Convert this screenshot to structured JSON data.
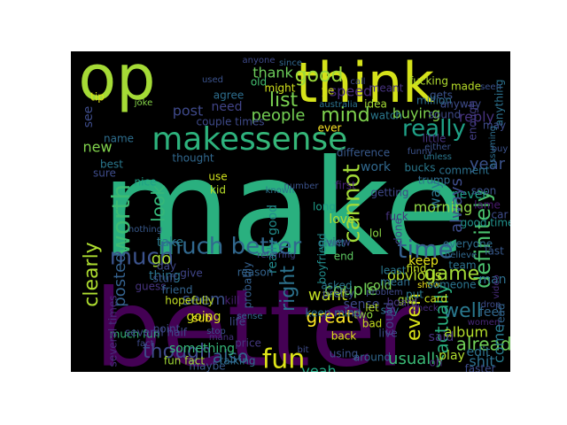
{
  "background": "#000000",
  "page_background": "#ffffff",
  "words": [
    {
      "text": "make",
      "color": "#2ab07f"
    },
    {
      "text": "better",
      "color": "#440154"
    },
    {
      "text": "op",
      "color": "#a5db36"
    },
    {
      "text": "think",
      "color": "#d5e21a"
    },
    {
      "text": "makes",
      "color": "#2db27d"
    },
    {
      "text": "sense",
      "color": "#35b779"
    },
    {
      "text": "good",
      "color": "#9bd93c"
    },
    {
      "text": "thank",
      "color": "#6ccd5a"
    },
    {
      "text": "list",
      "color": "#7ad151"
    },
    {
      "text": "speed",
      "color": "#472c7a"
    },
    {
      "text": "mind",
      "color": "#7fd34e"
    },
    {
      "text": "people",
      "color": "#75d054"
    },
    {
      "text": "really",
      "color": "#1fa187"
    },
    {
      "text": "worth",
      "color": "#3dbc74"
    },
    {
      "text": "look",
      "color": "#35b779"
    },
    {
      "text": "cannot",
      "color": "#a2da37"
    },
    {
      "text": "definitely",
      "color": "#4ac16d"
    },
    {
      "text": "much",
      "color": "#3b528b"
    },
    {
      "text": "much better",
      "color": "#31688e"
    },
    {
      "text": "time",
      "color": "#355f8d"
    },
    {
      "text": "game",
      "color": "#a2da37"
    },
    {
      "text": "well",
      "color": "#2a788e"
    },
    {
      "text": "fun",
      "color": "#dde318"
    },
    {
      "text": "already",
      "color": "#70cf57"
    },
    {
      "text": "usually",
      "color": "#3aba76"
    },
    {
      "text": "though",
      "color": "#3e4a89"
    },
    {
      "text": "also",
      "color": "#33638d"
    },
    {
      "text": "great",
      "color": "#fde725"
    },
    {
      "text": "right",
      "color": "#2c728e"
    },
    {
      "text": "couple",
      "color": "#6ece58"
    },
    {
      "text": "even",
      "color": "#d8e219"
    },
    {
      "text": "actually",
      "color": "#29af7f"
    },
    {
      "text": "album",
      "color": "#b5de2b"
    },
    {
      "text": "yeah",
      "color": "#22a884"
    },
    {
      "text": "edit",
      "color": "#2c728e"
    },
    {
      "text": "clearly",
      "color": "#addc30"
    },
    {
      "text": "posted",
      "color": "#34618d"
    },
    {
      "text": "seem",
      "color": "#3b528b"
    },
    {
      "text": "want",
      "color": "#c2df23"
    },
    {
      "text": "new",
      "color": "#81d34d"
    },
    {
      "text": "post",
      "color": "#3e4989"
    },
    {
      "text": "need",
      "color": "#414487"
    },
    {
      "text": "see",
      "color": "#3e4c8a"
    },
    {
      "text": "year",
      "color": "#3b528b"
    },
    {
      "text": "reply",
      "color": "#46327e"
    },
    {
      "text": "buying",
      "color": "#7fd34e"
    },
    {
      "text": "never",
      "color": "#1fa088"
    },
    {
      "text": "work",
      "color": "#31688e"
    },
    {
      "text": "always",
      "color": "#3e4c8a"
    },
    {
      "text": "way",
      "color": "#2a768e"
    },
    {
      "text": "morning",
      "color": "#8fd744"
    },
    {
      "text": "obvious",
      "color": "#bade28"
    },
    {
      "text": "keep",
      "color": "#e7e419"
    },
    {
      "text": "sense",
      "color": "#3e4989"
    },
    {
      "text": "go",
      "color": "#a8db34"
    },
    {
      "text": "take",
      "color": "#2a788e"
    },
    {
      "text": "come",
      "color": "#287c8e"
    },
    {
      "text": "shit",
      "color": "#2d708e"
    },
    {
      "text": "said",
      "color": "#46327e"
    },
    {
      "text": "feel",
      "color": "#31688e"
    },
    {
      "text": "play",
      "color": "#b0dd2f"
    },
    {
      "text": "man",
      "color": "#2e6f8e"
    },
    {
      "text": "going",
      "color": "#d2e21b"
    },
    {
      "text": "something",
      "color": "#35b779"
    },
    {
      "text": "love",
      "color": "#b0dd2f"
    },
    {
      "text": "first",
      "color": "#482475"
    },
    {
      "text": "could",
      "color": "#404588"
    },
    {
      "text": "lol",
      "color": "#8bd646"
    },
    {
      "text": "say",
      "color": "#2f6c8e"
    },
    {
      "text": "put",
      "color": "#2a788e"
    },
    {
      "text": "cold",
      "color": "#7ad151"
    },
    {
      "text": "bad",
      "color": "#c8e020"
    },
    {
      "text": "back",
      "color": "#e2e418"
    },
    {
      "text": "live",
      "color": "#3e4a89"
    },
    {
      "text": "asked",
      "color": "#2a788e"
    },
    {
      "text": "use",
      "color": "#d0e11c"
    },
    {
      "text": "kid",
      "color": "#b8de29"
    },
    {
      "text": "nice",
      "color": "#1fa188"
    },
    {
      "text": "thing",
      "color": "#2b748e"
    },
    {
      "text": "guess",
      "color": "#46337e"
    },
    {
      "text": "probably",
      "color": "#34608d"
    },
    {
      "text": "really good",
      "color": "#228c8d"
    },
    {
      "text": "view",
      "color": "#3e4c8a"
    },
    {
      "text": "end",
      "color": "#5ec962"
    },
    {
      "text": "two",
      "color": "#90d743"
    },
    {
      "text": "let",
      "color": "#b5de2b"
    },
    {
      "text": "guy",
      "color": "#a5db36"
    },
    {
      "text": "find",
      "color": "#c5e021"
    },
    {
      "text": "show",
      "color": "#f1e51d"
    },
    {
      "text": "card",
      "color": "#cde11d"
    },
    {
      "text": "read",
      "color": "#32648e"
    },
    {
      "text": "made",
      "color": "#b8de29"
    },
    {
      "text": "sound",
      "color": "#3e4a89"
    },
    {
      "text": "ever",
      "color": "#fde725"
    },
    {
      "text": "stuff",
      "color": "#3a538b"
    },
    {
      "text": "hopefully",
      "color": "#c2df23"
    },
    {
      "text": "day",
      "color": "#3f4788"
    },
    {
      "text": "give",
      "color": "#404588"
    },
    {
      "text": "friend",
      "color": "#33638d"
    },
    {
      "text": "point",
      "color": "#3e4989"
    },
    {
      "text": "sub",
      "color": "#fde725"
    },
    {
      "text": "maybe",
      "color": "#38598c"
    },
    {
      "text": "fun fact",
      "color": "#a2da37"
    },
    {
      "text": "much fun",
      "color": "#35b779"
    },
    {
      "text": "several times",
      "color": "#472f7d"
    },
    {
      "text": "several half",
      "color": "#3f4788"
    },
    {
      "text": "thought",
      "color": "#31688e"
    },
    {
      "text": "tip",
      "color": "#dde318"
    },
    {
      "text": "joke",
      "color": "#86d549"
    },
    {
      "text": "agree",
      "color": "#2e6e8e"
    },
    {
      "text": "old",
      "color": "#44bf70"
    },
    {
      "text": "might",
      "color": "#d2e21b"
    },
    {
      "text": "idea",
      "color": "#a5db36"
    },
    {
      "text": "watch",
      "color": "#2a788e"
    },
    {
      "text": "meant",
      "color": "#46327e"
    },
    {
      "text": "fucking",
      "color": "#b0dd2f"
    },
    {
      "text": "gets",
      "color": "#3b528b"
    },
    {
      "text": "anyway",
      "color": "#3e4c8a"
    },
    {
      "text": "anything",
      "color": "#2c728e"
    },
    {
      "text": "enough",
      "color": "#433e85"
    },
    {
      "text": "little",
      "color": "#46337e"
    },
    {
      "text": "difference",
      "color": "#38598c"
    },
    {
      "text": "bucks",
      "color": "#2a788e"
    },
    {
      "text": "trump",
      "color": "#2f6c8e"
    },
    {
      "text": "comment",
      "color": "#2c718e"
    },
    {
      "text": "soon",
      "color": "#3b528b"
    },
    {
      "text": "lame",
      "color": "#481a6c"
    },
    {
      "text": "everyone",
      "color": "#2e6e8e"
    },
    {
      "text": "good time",
      "color": "#21918c"
    },
    {
      "text": "car",
      "color": "#3e4c8a"
    },
    {
      "text": "someone",
      "color": "#2b748e"
    },
    {
      "text": "least",
      "color": "#2a788e"
    },
    {
      "text": "long",
      "color": "#1f9e89"
    },
    {
      "text": "giant",
      "color": "#2a788e"
    },
    {
      "text": "boyfriend",
      "color": "#228d8d"
    },
    {
      "text": "getting",
      "color": "#3e4989"
    },
    {
      "text": "pretty",
      "color": "#3b528b"
    },
    {
      "text": "keep mind",
      "color": "#2c728e"
    },
    {
      "text": "board",
      "color": "#46337e"
    },
    {
      "text": "talking",
      "color": "#2e6e8e"
    },
    {
      "text": "around",
      "color": "#31688e"
    },
    {
      "text": "faster",
      "color": "#3e4c8a"
    },
    {
      "text": "oh",
      "color": "#482576"
    },
    {
      "text": "using",
      "color": "#3b528b"
    },
    {
      "text": "price",
      "color": "#44387f"
    },
    {
      "text": "life",
      "color": "#3e4989"
    },
    {
      "text": "kill",
      "color": "#481f71"
    },
    {
      "text": "reason",
      "color": "#33638d"
    },
    {
      "text": "mean",
      "color": "#2e6e8e"
    },
    {
      "text": "team",
      "color": "#2c728e"
    },
    {
      "text": "last",
      "color": "#38598c"
    },
    {
      "text": "drop",
      "color": "#3e4c8a"
    },
    {
      "text": "video",
      "color": "#472c7a"
    },
    {
      "text": "fuck",
      "color": "#46327e"
    },
    {
      "text": "done",
      "color": "#404588"
    },
    {
      "text": "either",
      "color": "#3b528b"
    },
    {
      "text": "unless",
      "color": "#2a788e"
    },
    {
      "text": "may",
      "color": "#3e4c8a"
    },
    {
      "text": "buy",
      "color": "#3b528b"
    },
    {
      "text": "assuming",
      "color": "#2e6e8e"
    },
    {
      "text": "since",
      "color": "#31688e"
    },
    {
      "text": "anyone",
      "color": "#3e4989"
    },
    {
      "text": "used",
      "color": "#3b528b"
    },
    {
      "text": "australia",
      "color": "#2c728e"
    },
    {
      "text": "call",
      "color": "#3e4c8a"
    },
    {
      "text": "ye",
      "color": "#d8e219"
    },
    {
      "text": "couple times",
      "color": "#3e4a89"
    },
    {
      "text": "million",
      "color": "#2e6e8e"
    },
    {
      "text": "funny",
      "color": "#3b528b"
    },
    {
      "text": "check",
      "color": "#472c7a"
    },
    {
      "text": "women",
      "color": "#482878"
    },
    {
      "text": "problem",
      "color": "#3e4989"
    },
    {
      "text": "believe",
      "color": "#31688e"
    },
    {
      "text": "known",
      "color": "#2c728e"
    },
    {
      "text": "number",
      "color": "#3b528b"
    },
    {
      "text": "referring",
      "color": "#404588"
    },
    {
      "text": "nothing",
      "color": "#38598c"
    },
    {
      "text": "best",
      "color": "#2a788e"
    },
    {
      "text": "sure",
      "color": "#3e4c8a"
    },
    {
      "text": "name",
      "color": "#2e6e8e"
    },
    {
      "text": "stop",
      "color": "#3b528b"
    },
    {
      "text": "mana",
      "color": "#46327e"
    },
    {
      "text": "fact",
      "color": "#3e4989"
    },
    {
      "text": "square",
      "color": "#404588"
    },
    {
      "text": "bit",
      "color": "#3e4c8a"
    },
    {
      "text": "seen",
      "color": "#3b528b"
    },
    {
      "text": "sense",
      "color": "#31688e"
    }
  ]
}
